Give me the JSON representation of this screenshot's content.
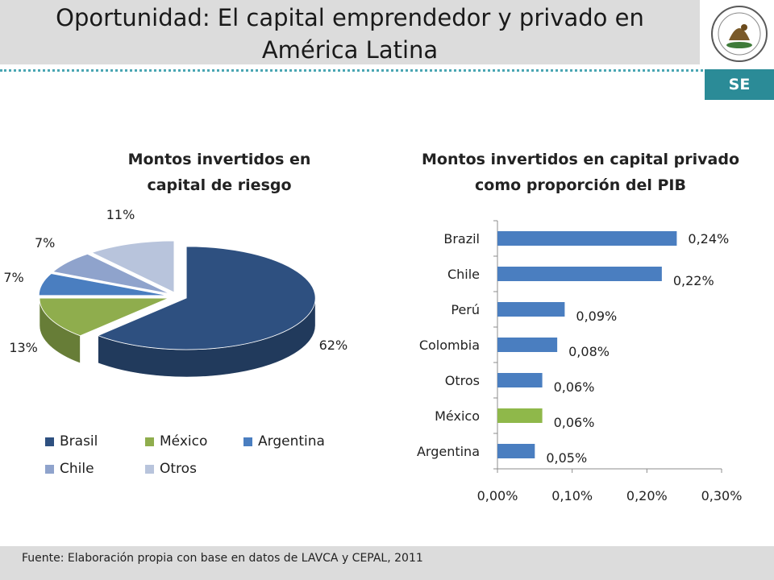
{
  "slide": {
    "title": "Oportunidad: El capital emprendedor y privado en\nAmérica Latina",
    "footer": "Fuente: Elaboración propia con base en datos de LAVCA y CEPAL, 2011",
    "logo_text": "SE",
    "accent_color": "#2b8b97"
  },
  "chart_data": [
    {
      "type": "pie",
      "title": "Montos invertidos en\ncapital de riesgo",
      "categories": [
        "Brasil",
        "México",
        "Argentina",
        "Chile",
        "Otros"
      ],
      "values": [
        62,
        13,
        7,
        7,
        11
      ],
      "labels": [
        "62%",
        "13%",
        "7%",
        "7%",
        "11%"
      ],
      "colors": [
        "#2e5080",
        "#8fad4d",
        "#4a7ec0",
        "#8fa3cc",
        "#b8c4dc"
      ],
      "exploded": true,
      "three_d": true,
      "legend": "bottom"
    },
    {
      "type": "bar",
      "orientation": "horizontal",
      "title": "Montos invertidos en capital privado\ncomo proporción del PIB",
      "categories": [
        "Brazil",
        "Chile",
        "Perú",
        "Colombia",
        "Otros",
        "México",
        "Argentina"
      ],
      "values": [
        0.24,
        0.22,
        0.09,
        0.08,
        0.06,
        0.06,
        0.05
      ],
      "labels": [
        "0,24%",
        "0,22%",
        "0,09%",
        "0,08%",
        "0,06%",
        "0,06%",
        "0,05%"
      ],
      "colors": [
        "#4a7ec0",
        "#4a7ec0",
        "#4a7ec0",
        "#4a7ec0",
        "#4a7ec0",
        "#8fb84a",
        "#4a7ec0"
      ],
      "xlim": [
        0,
        0.3
      ],
      "xticks": [
        "0,00%",
        "0,10%",
        "0,20%",
        "0,30%"
      ],
      "grid": false
    }
  ]
}
